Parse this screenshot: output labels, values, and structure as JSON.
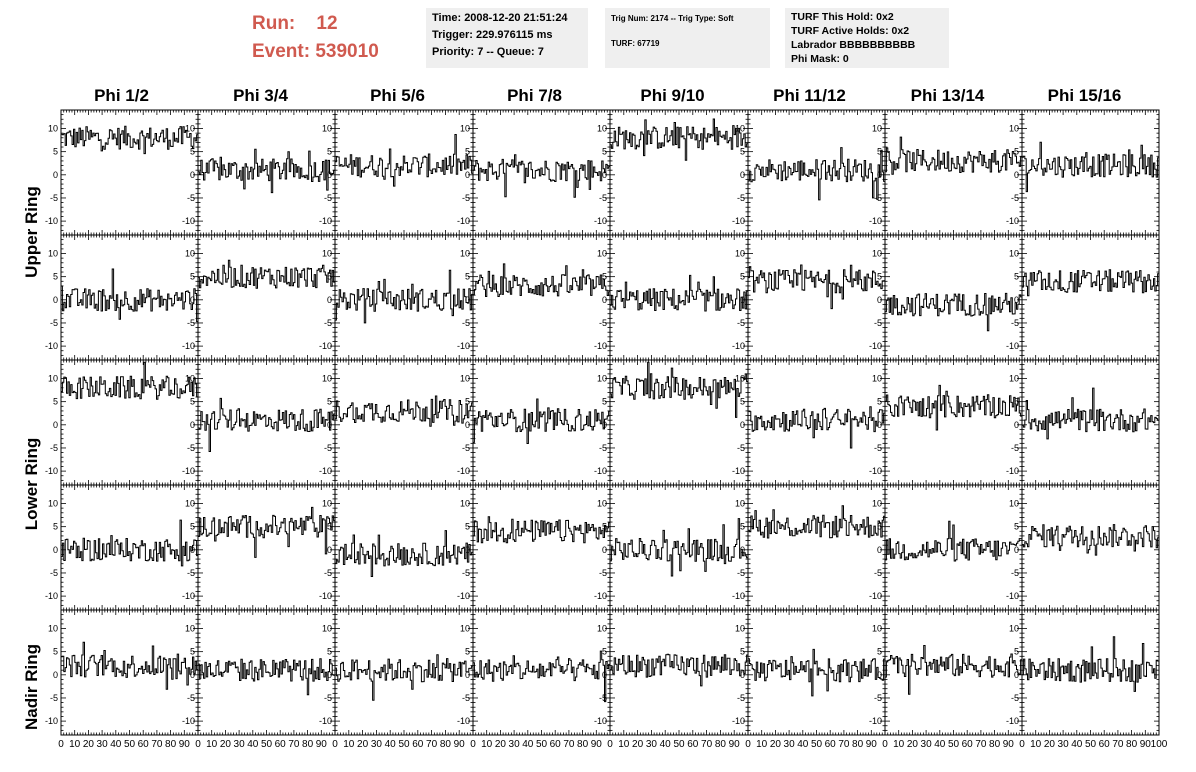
{
  "header": {
    "run_label": "Run:",
    "run_value": "12",
    "event_label": "Event:",
    "event_value": "539010"
  },
  "info": {
    "time": "Time: 2008-12-20 21:51:24",
    "trigger": "Trigger: 229.976115 ms",
    "priority": "Priority: 7 -- Queue: 7",
    "trig_num": "Trig Num: 2174 -- Trig Type: Soft",
    "turf": "TURF: 67719",
    "turf_this_hold": "TURF This Hold: 0x2",
    "turf_active_holds": "TURF Active Holds: 0x2",
    "labrador": "Labrador BBBBBBBBBB",
    "phi_mask": "Phi Mask: 0"
  },
  "chart_data": {
    "type": "line",
    "columns": [
      "Phi 1/2",
      "Phi 3/4",
      "Phi 5/6",
      "Phi 7/8",
      "Phi 9/10",
      "Phi 11/12",
      "Phi 13/14",
      "Phi 15/16"
    ],
    "rows": [
      "Upper Ring",
      "Upper Ring",
      "Lower Ring",
      "Lower Ring",
      "Nadir Ring"
    ],
    "row_labels": [
      "Upper Ring",
      "Lower Ring",
      "Nadir Ring"
    ],
    "xlim": [
      0,
      100
    ],
    "ylim": [
      -13,
      14
    ],
    "yticks": [
      -10,
      -5,
      0,
      5,
      10
    ],
    "xtick_labels": [
      "0",
      "10",
      "20",
      "30",
      "40",
      "50",
      "60",
      "70",
      "80",
      "90",
      "100"
    ],
    "baselines": [
      [
        8,
        1,
        2,
        1,
        8,
        1,
        3,
        2
      ],
      [
        0,
        5,
        0,
        3,
        0,
        4,
        -1,
        4
      ],
      [
        8,
        1,
        3,
        1,
        8,
        1,
        4,
        1
      ],
      [
        0,
        5,
        -1,
        4,
        0,
        5,
        0,
        3
      ],
      [
        2,
        1,
        1,
        1,
        2,
        1,
        2,
        1
      ]
    ],
    "noise_amplitude": 2.5,
    "samples_per_trace": 100
  }
}
